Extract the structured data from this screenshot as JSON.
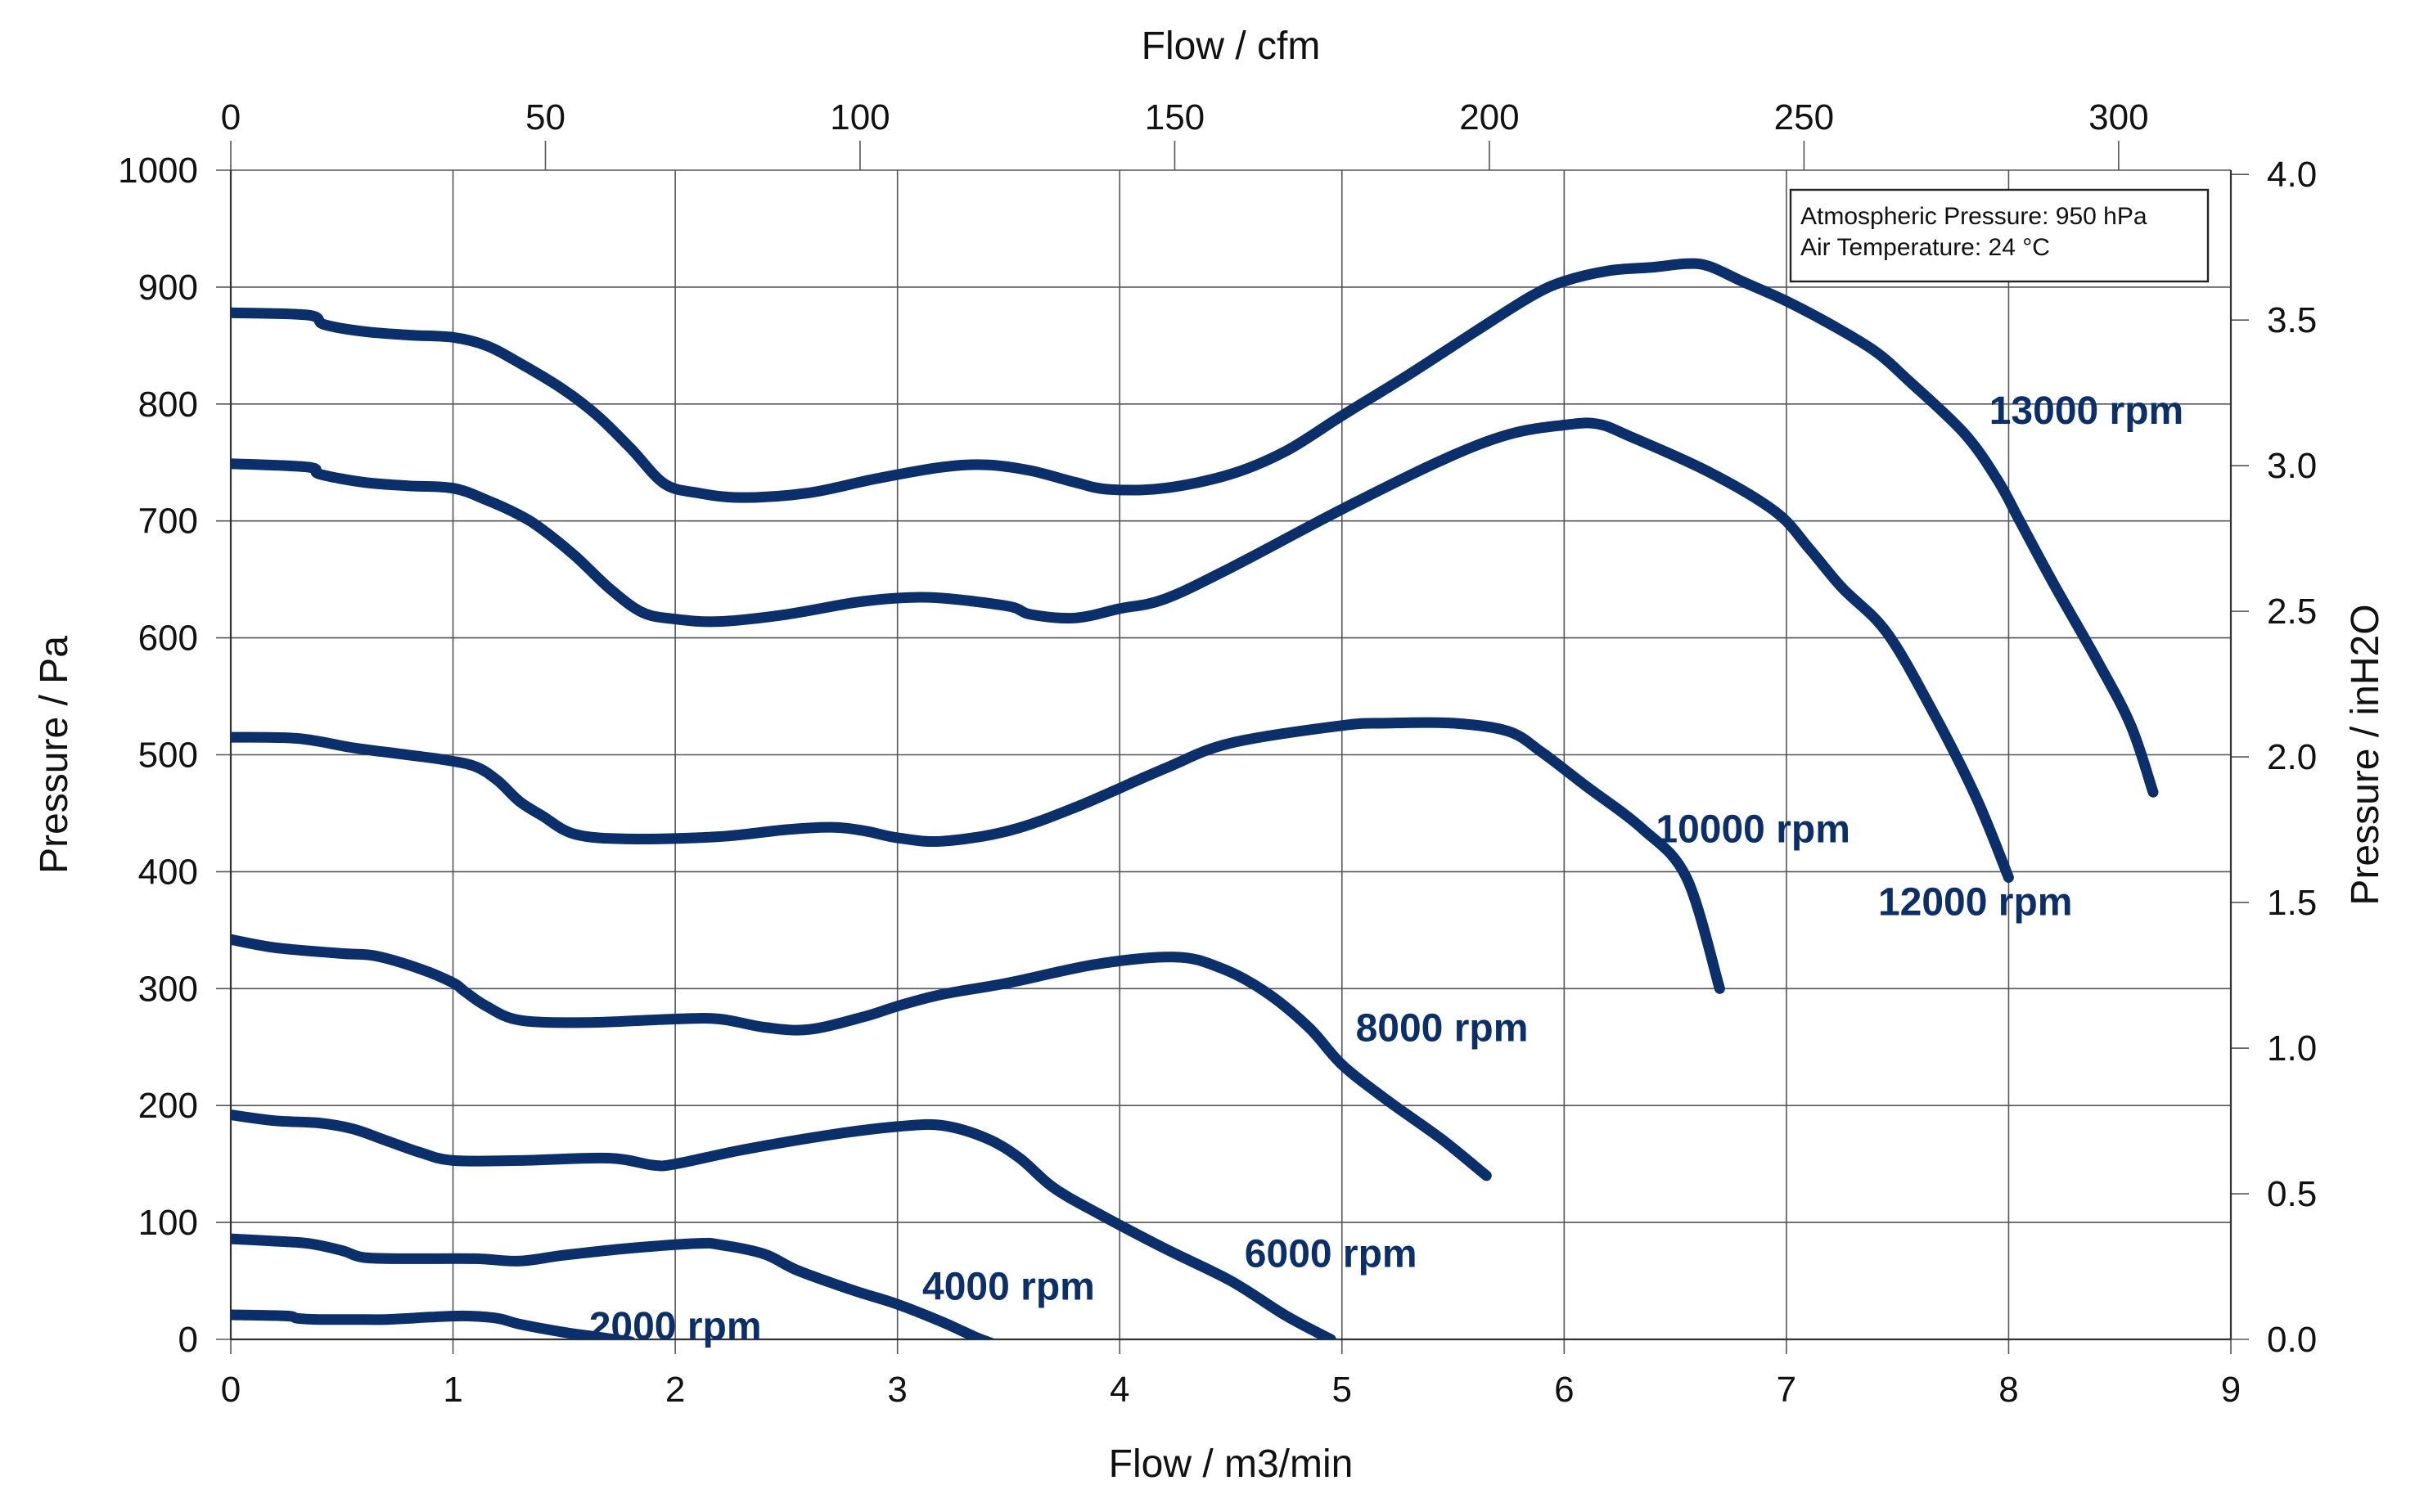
{
  "chart_data": {
    "type": "line",
    "x_bottom": {
      "label": "Flow / m3/min",
      "ticks": [
        "0",
        "1",
        "2",
        "3",
        "4",
        "5",
        "6",
        "7",
        "8",
        "9"
      ],
      "lim": [
        0,
        9
      ]
    },
    "x_top": {
      "label": "Flow / cfm",
      "ticks": [
        "0",
        "50",
        "100",
        "150",
        "200",
        "250",
        "300"
      ]
    },
    "y_left": {
      "label": "Pressure / Pa",
      "ticks": [
        "0",
        "100",
        "200",
        "300",
        "400",
        "500",
        "600",
        "700",
        "800",
        "900",
        "1000"
      ],
      "lim": [
        0,
        1000
      ]
    },
    "y_right": {
      "label": "Pressure / inH2O",
      "ticks": [
        "0.0",
        "0.5",
        "1.0",
        "1.5",
        "2.0",
        "2.5",
        "3.0",
        "3.5",
        "4.0"
      ]
    },
    "grid": true,
    "info_box": {
      "position": "top-right",
      "lines": [
        "Atmospheric Pressure: 950 hPa",
        "Air Temperature: 24 °C"
      ]
    },
    "line_color": "#0b2f6b",
    "series": [
      {
        "name": "2000 rpm",
        "label_at": [
          2.0,
          0
        ],
        "points": [
          [
            0,
            21
          ],
          [
            0.25,
            20
          ],
          [
            0.3,
            18
          ],
          [
            0.4,
            17
          ],
          [
            0.6,
            17
          ],
          [
            0.7,
            17
          ],
          [
            0.9,
            19
          ],
          [
            1.05,
            20
          ],
          [
            1.2,
            18
          ],
          [
            1.3,
            13
          ],
          [
            1.5,
            6
          ],
          [
            1.65,
            2
          ],
          [
            1.8,
            -2
          ]
        ]
      },
      {
        "name": "4000 rpm",
        "label_at": [
          3.5,
          34
        ],
        "points": [
          [
            0,
            86
          ],
          [
            0.2,
            84
          ],
          [
            0.35,
            82
          ],
          [
            0.5,
            76
          ],
          [
            0.6,
            70
          ],
          [
            0.8,
            69
          ],
          [
            1.1,
            69
          ],
          [
            1.3,
            67
          ],
          [
            1.5,
            72
          ],
          [
            1.8,
            78
          ],
          [
            2.1,
            82
          ],
          [
            2.2,
            81
          ],
          [
            2.4,
            73
          ],
          [
            2.55,
            59
          ],
          [
            2.8,
            42
          ],
          [
            3.0,
            30
          ],
          [
            3.2,
            15
          ],
          [
            3.35,
            2
          ],
          [
            3.42,
            -3
          ]
        ]
      },
      {
        "name": "6000 rpm",
        "label_at": [
          4.95,
          62
        ],
        "points": [
          [
            0,
            192
          ],
          [
            0.2,
            187
          ],
          [
            0.4,
            185
          ],
          [
            0.55,
            180
          ],
          [
            0.7,
            170
          ],
          [
            0.85,
            160
          ],
          [
            1.0,
            153
          ],
          [
            1.3,
            153
          ],
          [
            1.7,
            155
          ],
          [
            1.9,
            149
          ],
          [
            2.0,
            150
          ],
          [
            2.3,
            162
          ],
          [
            2.7,
            175
          ],
          [
            3.0,
            182
          ],
          [
            3.2,
            183
          ],
          [
            3.4,
            172
          ],
          [
            3.55,
            155
          ],
          [
            3.7,
            130
          ],
          [
            3.9,
            108
          ],
          [
            4.2,
            78
          ],
          [
            4.5,
            50
          ],
          [
            4.75,
            20
          ],
          [
            4.95,
            0
          ]
        ]
      },
      {
        "name": "8000 rpm",
        "label_at": [
          5.45,
          255
        ],
        "points": [
          [
            0,
            342
          ],
          [
            0.2,
            335
          ],
          [
            0.5,
            330
          ],
          [
            0.65,
            328
          ],
          [
            0.85,
            317
          ],
          [
            1.0,
            305
          ],
          [
            1.05,
            298
          ],
          [
            1.15,
            285
          ],
          [
            1.3,
            273
          ],
          [
            1.6,
            271
          ],
          [
            2.0,
            274
          ],
          [
            2.2,
            274
          ],
          [
            2.4,
            267
          ],
          [
            2.6,
            265
          ],
          [
            2.85,
            276
          ],
          [
            3.0,
            285
          ],
          [
            3.2,
            295
          ],
          [
            3.5,
            305
          ],
          [
            3.9,
            321
          ],
          [
            4.25,
            327
          ],
          [
            4.45,
            318
          ],
          [
            4.65,
            298
          ],
          [
            4.85,
            267
          ],
          [
            5.0,
            235
          ],
          [
            5.2,
            205
          ],
          [
            5.45,
            171
          ],
          [
            5.65,
            140
          ]
        ]
      },
      {
        "name": "10000 rpm",
        "label_at": [
          6.85,
          425
        ],
        "points": [
          [
            0,
            515
          ],
          [
            0.3,
            514
          ],
          [
            0.55,
            506
          ],
          [
            0.75,
            501
          ],
          [
            0.95,
            496
          ],
          [
            1.1,
            490
          ],
          [
            1.2,
            478
          ],
          [
            1.3,
            460
          ],
          [
            1.4,
            448
          ],
          [
            1.55,
            432
          ],
          [
            1.8,
            428
          ],
          [
            2.2,
            430
          ],
          [
            2.5,
            436
          ],
          [
            2.7,
            438
          ],
          [
            2.85,
            435
          ],
          [
            3.0,
            429
          ],
          [
            3.2,
            426
          ],
          [
            3.5,
            435
          ],
          [
            3.8,
            455
          ],
          [
            4.2,
            488
          ],
          [
            4.5,
            510
          ],
          [
            5.0,
            525
          ],
          [
            5.2,
            527
          ],
          [
            5.5,
            527
          ],
          [
            5.75,
            520
          ],
          [
            5.9,
            502
          ],
          [
            6.1,
            473
          ],
          [
            6.35,
            437
          ],
          [
            6.55,
            395
          ],
          [
            6.7,
            300
          ]
        ]
      },
      {
        "name": "12000 rpm",
        "label_at": [
          7.85,
          363
        ],
        "points": [
          [
            0,
            749
          ],
          [
            0.35,
            746
          ],
          [
            0.4,
            740
          ],
          [
            0.6,
            733
          ],
          [
            0.8,
            730
          ],
          [
            1.0,
            728
          ],
          [
            1.15,
            718
          ],
          [
            1.3,
            705
          ],
          [
            1.4,
            693
          ],
          [
            1.55,
            670
          ],
          [
            1.7,
            643
          ],
          [
            1.85,
            622
          ],
          [
            2.0,
            616
          ],
          [
            2.2,
            614
          ],
          [
            2.5,
            620
          ],
          [
            2.8,
            630
          ],
          [
            3.0,
            634
          ],
          [
            3.2,
            634
          ],
          [
            3.5,
            627
          ],
          [
            3.6,
            620
          ],
          [
            3.8,
            617
          ],
          [
            4.0,
            625
          ],
          [
            4.2,
            633
          ],
          [
            4.5,
            660
          ],
          [
            5.0,
            710
          ],
          [
            5.45,
            752
          ],
          [
            5.75,
            774
          ],
          [
            6.0,
            782
          ],
          [
            6.15,
            783
          ],
          [
            6.3,
            772
          ],
          [
            6.65,
            742
          ],
          [
            6.95,
            708
          ],
          [
            7.1,
            677
          ],
          [
            7.25,
            643
          ],
          [
            7.45,
            605
          ],
          [
            7.65,
            540
          ],
          [
            7.85,
            465
          ],
          [
            8.0,
            395
          ]
        ]
      },
      {
        "name": "13000 rpm",
        "label_at": [
          8.35,
          783
        ],
        "points": [
          [
            0,
            878
          ],
          [
            0.35,
            876
          ],
          [
            0.42,
            868
          ],
          [
            0.6,
            862
          ],
          [
            0.8,
            859
          ],
          [
            1.0,
            857
          ],
          [
            1.15,
            850
          ],
          [
            1.3,
            835
          ],
          [
            1.5,
            812
          ],
          [
            1.65,
            790
          ],
          [
            1.8,
            762
          ],
          [
            1.95,
            732
          ],
          [
            2.1,
            724
          ],
          [
            2.3,
            720
          ],
          [
            2.6,
            724
          ],
          [
            2.9,
            736
          ],
          [
            3.2,
            746
          ],
          [
            3.4,
            748
          ],
          [
            3.6,
            743
          ],
          [
            3.8,
            733
          ],
          [
            3.95,
            727
          ],
          [
            4.2,
            728
          ],
          [
            4.5,
            740
          ],
          [
            4.75,
            760
          ],
          [
            5.0,
            790
          ],
          [
            5.3,
            825
          ],
          [
            5.6,
            862
          ],
          [
            5.85,
            892
          ],
          [
            6.0,
            905
          ],
          [
            6.2,
            914
          ],
          [
            6.4,
            917
          ],
          [
            6.55,
            920
          ],
          [
            6.65,
            918
          ],
          [
            6.8,
            905
          ],
          [
            7.0,
            888
          ],
          [
            7.2,
            868
          ],
          [
            7.4,
            845
          ],
          [
            7.55,
            820
          ],
          [
            7.8,
            775
          ],
          [
            7.95,
            735
          ],
          [
            8.05,
            700
          ],
          [
            8.2,
            647
          ],
          [
            8.4,
            580
          ],
          [
            8.55,
            525
          ],
          [
            8.65,
            468
          ]
        ]
      }
    ]
  }
}
